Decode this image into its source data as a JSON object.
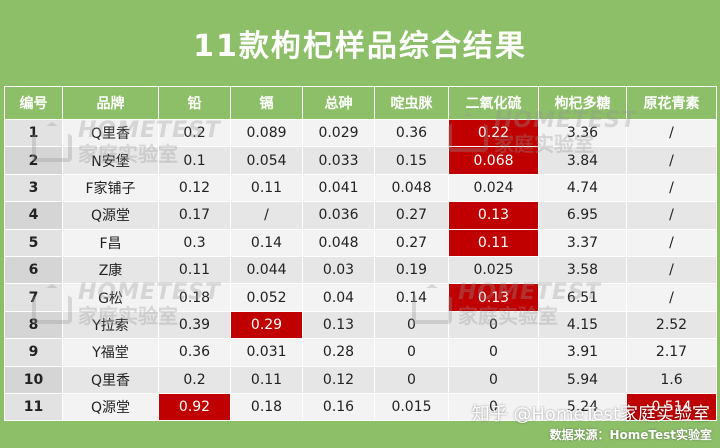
{
  "title": "11款枸杞样品综合结果",
  "colors": {
    "header_green": "#8dbf69",
    "highlight_red": "#c00000"
  },
  "headers": [
    "编号",
    "品牌",
    "铅",
    "镉",
    "总砷",
    "啶虫脒",
    "二氧化硫",
    "枸杞多糖",
    "原花青素"
  ],
  "rows": [
    [
      "1",
      "Q里香",
      "0.2",
      "0.089",
      "0.029",
      "0.36",
      "0.22",
      "3.36",
      "/"
    ],
    [
      "2",
      "N安堡",
      "0.1",
      "0.054",
      "0.033",
      "0.15",
      "0.068",
      "3.84",
      "/"
    ],
    [
      "3",
      "F家铺子",
      "0.12",
      "0.11",
      "0.041",
      "0.048",
      "0.024",
      "4.74",
      "/"
    ],
    [
      "4",
      "Q源堂",
      "0.17",
      "/",
      "0.036",
      "0.27",
      "0.13",
      "6.95",
      "/"
    ],
    [
      "5",
      "F昌",
      "0.3",
      "0.14",
      "0.048",
      "0.27",
      "0.11",
      "3.37",
      "/"
    ],
    [
      "6",
      "Z康",
      "0.11",
      "0.044",
      "0.03",
      "0.19",
      "0.025",
      "3.58",
      "/"
    ],
    [
      "7",
      "G松",
      "0.18",
      "0.052",
      "0.04",
      "0.14",
      "0.13",
      "6.51",
      "/"
    ],
    [
      "8",
      "Y拉索",
      "0.39",
      "0.29",
      "0.13",
      "0",
      "0",
      "4.15",
      "2.52"
    ],
    [
      "9",
      "Y福堂",
      "0.36",
      "0.031",
      "0.28",
      "0",
      "0",
      "3.91",
      "2.17"
    ],
    [
      "10",
      "Q里香",
      "0.2",
      "0.11",
      "0.12",
      "0",
      "0",
      "5.94",
      "1.6"
    ],
    [
      "11",
      "Q源堂",
      "0.92",
      "0.18",
      "0.16",
      "0.015",
      "0",
      "5.24",
      "0.514"
    ]
  ],
  "highlighted_cells": [
    [
      0,
      6
    ],
    [
      1,
      6
    ],
    [
      3,
      6
    ],
    [
      4,
      6
    ],
    [
      6,
      6
    ],
    [
      7,
      3
    ],
    [
      10,
      2
    ],
    [
      10,
      8
    ]
  ],
  "watermark": {
    "en": "HOMETEST",
    "cn": "家庭实验室"
  },
  "footer": "知乎 @HomeTest家庭实验室",
  "source": "数据来源：HomeTest实验室"
}
